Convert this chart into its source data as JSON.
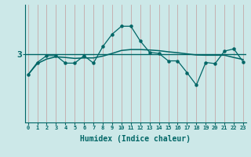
{
  "xlabel": "Humidex (Indice chaleur)",
  "background_color": "#cce8e8",
  "line_color": "#006666",
  "grid_color": "#c4a8a8",
  "xlim": [
    -0.3,
    23.3
  ],
  "ylim": [
    0.0,
    5.2
  ],
  "ytick_pos": 3.0,
  "ytick_label": "3",
  "x_zigzag": [
    0,
    1,
    2,
    3,
    4,
    5,
    6,
    7,
    8,
    9,
    10,
    11,
    12,
    13,
    14,
    15,
    16,
    17,
    18,
    19,
    20,
    21,
    22,
    23
  ],
  "y_zigzag": [
    2.1,
    2.65,
    2.95,
    2.95,
    2.62,
    2.62,
    2.95,
    2.62,
    3.35,
    3.9,
    4.25,
    4.25,
    3.6,
    3.1,
    3.05,
    2.72,
    2.72,
    2.2,
    1.65,
    2.65,
    2.6,
    3.15,
    3.25,
    2.68
  ],
  "y_smooth": [
    2.1,
    2.6,
    2.8,
    2.9,
    2.87,
    2.83,
    2.85,
    2.85,
    2.93,
    3.05,
    3.18,
    3.22,
    3.22,
    3.2,
    3.17,
    3.12,
    3.08,
    3.03,
    2.98,
    2.97,
    2.97,
    2.97,
    2.87,
    2.78
  ]
}
